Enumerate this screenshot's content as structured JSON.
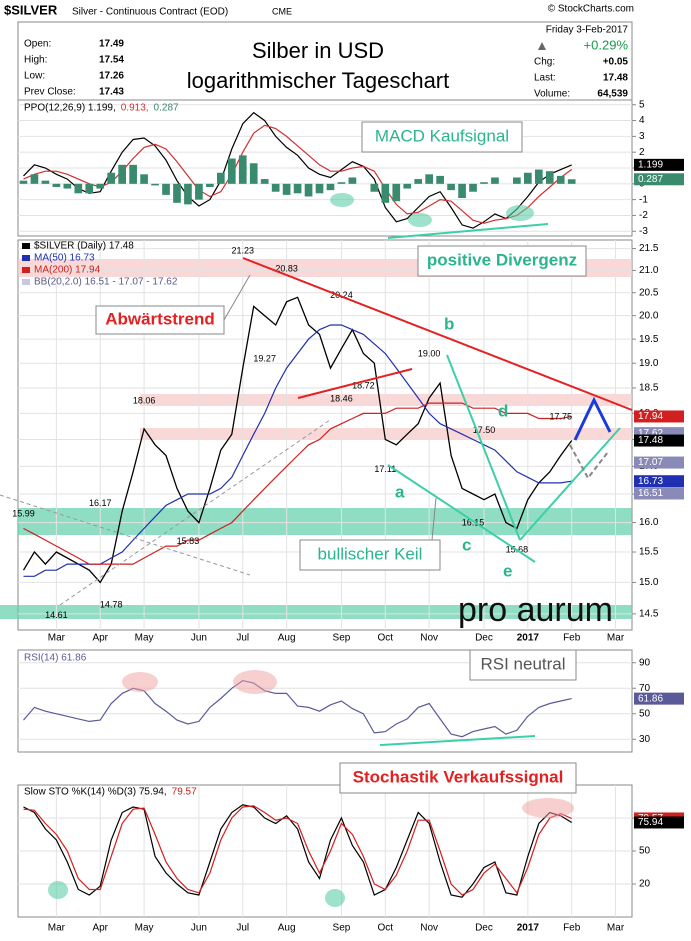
{
  "header": {
    "symbol": "$SILVER",
    "name": "Silver - Continuous Contract (EOD)",
    "exchange": "CME",
    "copyright": "© StockCharts.com",
    "quote": [
      {
        "label": "Open:",
        "value": "17.49"
      },
      {
        "label": "High:",
        "value": "17.54"
      },
      {
        "label": "Low:",
        "value": "17.26"
      },
      {
        "label": "Prev Close:",
        "value": "17.43"
      }
    ],
    "date": "Friday  3-Feb-2017",
    "change_pct": "+0.29%",
    "stats": [
      {
        "label": "Chg:",
        "value": "+0.05"
      },
      {
        "label": "Last:",
        "value": "17.48"
      },
      {
        "label": "Volume:",
        "value": "64,539"
      }
    ]
  },
  "annotations": {
    "title": "Silber in USD",
    "subtitle": "logarithmischer Tageschart",
    "macd": "MACD Kaufsignal",
    "divergence": "positive Divergenz",
    "downtrend": "Abwärtstrend",
    "wedge": "bullischer Keil",
    "rsi": "RSI neutral",
    "stochastic": "Stochastik Verkaufssignal",
    "waves": [
      "a",
      "b",
      "c",
      "d",
      "e"
    ],
    "logo": "pro aurum"
  },
  "chart_data": [
    {
      "type": "line",
      "ylim": [
        -3.3,
        5.3
      ],
      "yticks": [
        5,
        4,
        3,
        2,
        1,
        0,
        -1,
        -2,
        -3
      ],
      "grid": true,
      "series": [
        {
          "name": "PPO(12,26,9) 1.199,",
          "color": "#000000",
          "values": [
            0.5,
            1.2,
            1.0,
            0.6,
            0.3,
            -0.3,
            -0.6,
            -0.5,
            0.8,
            2.0,
            2.8,
            2.9,
            2.4,
            1.5,
            0.2,
            -0.8,
            -1.4,
            -1.0,
            0.2,
            2.2,
            3.8,
            4.5,
            4.0,
            3.0,
            2.3,
            1.8,
            1.0,
            0.6,
            0.4,
            0.9,
            1.4,
            1.1,
            0.3,
            -1.5,
            -2.4,
            -2.2,
            -1.5,
            -0.8,
            -0.5,
            -1.5,
            -2.6,
            -2.8,
            -2.4,
            -1.9,
            -2.2,
            -1.6,
            -0.8,
            0.1,
            0.6,
            0.9,
            1.199,
            null,
            null,
            null,
            null,
            null
          ]
        },
        {
          "name": "0.913,",
          "color": "#d03030",
          "values": [
            0.3,
            0.6,
            0.8,
            0.8,
            0.6,
            0.3,
            0.0,
            -0.2,
            0.1,
            0.8,
            1.6,
            2.3,
            2.5,
            2.2,
            1.4,
            0.5,
            -0.4,
            -0.8,
            -0.5,
            0.6,
            2.0,
            3.2,
            3.7,
            3.5,
            3.0,
            2.4,
            1.8,
            1.2,
            0.8,
            0.8,
            1.0,
            1.1,
            0.8,
            -0.3,
            -1.3,
            -1.9,
            -1.8,
            -1.4,
            -1.0,
            -1.1,
            -1.7,
            -2.3,
            -2.5,
            -2.3,
            -2.2,
            -2.0,
            -1.5,
            -0.8,
            -0.2,
            0.4,
            0.913,
            null,
            null,
            null,
            null,
            null
          ]
        },
        {
          "name": "0.287",
          "color": "#3a8a6e",
          "type": "bar",
          "values": [
            0.2,
            0.6,
            0.2,
            -0.2,
            -0.3,
            -0.6,
            -0.6,
            -0.3,
            0.7,
            1.2,
            1.2,
            0.6,
            -0.1,
            -0.7,
            -1.2,
            -1.3,
            -1.0,
            -0.2,
            0.7,
            1.6,
            1.8,
            1.3,
            0.3,
            -0.5,
            -0.7,
            -0.6,
            -0.8,
            -0.6,
            -0.4,
            0.1,
            0.4,
            0,
            -0.5,
            -1.2,
            -1.1,
            -0.3,
            0.3,
            0.6,
            0.5,
            -0.4,
            -0.9,
            -0.5,
            0.1,
            0.4,
            0,
            0.4,
            0.7,
            0.9,
            0.8,
            0.5,
            0.287,
            null,
            null,
            null,
            null,
            null
          ]
        }
      ],
      "value_tags": [
        {
          "value": 1.199,
          "color": "#000000"
        },
        {
          "value": 0.287,
          "color": "#3a8a6e"
        }
      ]
    },
    {
      "type": "line",
      "log_scale": true,
      "ylim": [
        14.25,
        21.7
      ],
      "grid": true,
      "categories": [
        null,
        null,
        null,
        "Mar",
        null,
        null,
        null,
        "Apr",
        null,
        null,
        null,
        "May",
        null,
        null,
        null,
        null,
        "Jun",
        null,
        null,
        null,
        "Jul",
        null,
        null,
        null,
        "Aug",
        null,
        null,
        null,
        null,
        "Sep",
        null,
        null,
        null,
        "Oct",
        null,
        null,
        null,
        "Nov",
        null,
        null,
        null,
        null,
        "Dec",
        null,
        null,
        null,
        "2017",
        null,
        null,
        null,
        "Feb",
        null,
        null,
        null,
        "Mar",
        null
      ],
      "yticks": [
        21.5,
        {
          "value": 21,
          "label": "21.0"
        },
        20.5,
        {
          "value": 20,
          "label": "20.0"
        },
        19.5,
        {
          "value": 19,
          "label": "19.0"
        },
        18.5,
        {
          "value": 18,
          "label": "18.0"
        },
        17.5,
        {
          "value": 17,
          "label": "17.0"
        },
        16.5,
        {
          "value": 16,
          "label": "16.0"
        },
        15.5,
        {
          "value": 15,
          "label": "15.0"
        },
        14.5
      ],
      "series": [
        {
          "name": "$SILVER (Daily) 17.48",
          "color": "#000000",
          "values": [
            15.2,
            15.5,
            15.3,
            15.5,
            15.4,
            15.3,
            15.2,
            15.0,
            15.3,
            16.2,
            16.9,
            17.7,
            17.4,
            17.2,
            16.6,
            16.2,
            16.0,
            16.6,
            17.3,
            17.6,
            18.9,
            20.2,
            20.0,
            19.8,
            20.3,
            20.4,
            19.8,
            19.6,
            18.9,
            19.3,
            19.7,
            19.2,
            19.0,
            17.5,
            17.4,
            17.6,
            17.8,
            18.3,
            18.6,
            17.2,
            16.6,
            16.5,
            16.4,
            16.5,
            16.0,
            15.9,
            16.4,
            16.7,
            16.9,
            17.2,
            17.48,
            null,
            null,
            null,
            null,
            null
          ]
        },
        {
          "name": "MA(50) 16.73",
          "color": "#2030b0",
          "values": [
            15.1,
            15.1,
            15.2,
            15.2,
            15.3,
            15.3,
            15.3,
            15.3,
            15.4,
            15.5,
            15.7,
            15.9,
            16.1,
            16.3,
            16.4,
            16.5,
            16.5,
            16.5,
            16.6,
            16.8,
            17.2,
            17.6,
            18.0,
            18.5,
            18.9,
            19.2,
            19.5,
            19.7,
            19.8,
            19.8,
            19.7,
            19.6,
            19.4,
            19.2,
            18.9,
            18.6,
            18.3,
            18.0,
            17.8,
            17.7,
            17.6,
            17.5,
            17.4,
            17.3,
            17.1,
            16.9,
            16.8,
            16.7,
            16.7,
            16.7,
            16.73,
            null,
            null,
            null,
            null,
            null
          ]
        },
        {
          "name": "MA(200) 17.94",
          "color": "#d02020",
          "values": [
            15.9,
            15.8,
            15.7,
            15.6,
            15.5,
            15.4,
            15.3,
            15.3,
            15.3,
            15.3,
            15.3,
            15.4,
            15.5,
            15.6,
            15.6,
            15.7,
            15.7,
            15.8,
            15.9,
            16.0,
            16.2,
            16.4,
            16.6,
            16.8,
            17.0,
            17.2,
            17.4,
            17.5,
            17.7,
            17.8,
            17.9,
            18.0,
            18.0,
            18.0,
            18.1,
            18.1,
            18.1,
            18.2,
            18.2,
            18.2,
            18.2,
            18.1,
            18.1,
            18.1,
            18.0,
            18.0,
            18.0,
            17.9,
            17.9,
            17.9,
            17.94,
            null,
            null,
            null,
            null,
            null
          ]
        }
      ],
      "bands_label": "BB(20,2.0) 16.51 - 17.07 - 17.62",
      "price_labels": [
        21.23,
        20.83,
        20.24,
        19.27,
        18.72,
        18.46,
        18.06,
        16.17,
        15.99,
        15.83,
        14.78,
        14.61,
        {
          "value": 19,
          "label": "19.00"
        },
        17.11,
        {
          "value": 17.5,
          "label": "17.50"
        },
        16.15,
        15.68,
        17.75
      ],
      "value_tags": [
        {
          "value": 17.94,
          "color": "#d02020"
        },
        {
          "value": 17.62,
          "color": "#8a8ab8"
        },
        {
          "value": 17.48,
          "color": "#000000"
        },
        {
          "value": 17.07,
          "color": "#8a8ab8"
        },
        {
          "value": 16.73,
          "color": "#2030b0"
        },
        {
          "value": 16.51,
          "color": "#8a8ab8"
        }
      ]
    },
    {
      "type": "line",
      "ylim": [
        20,
        100
      ],
      "yticks": [
        90,
        70,
        50,
        30
      ],
      "grid": true,
      "series": [
        {
          "name": "RSI(14) 61.86",
          "color": "#5a5a9a",
          "values": [
            45,
            55,
            52,
            50,
            48,
            46,
            44,
            45,
            58,
            66,
            70,
            68,
            58,
            52,
            45,
            42,
            44,
            55,
            62,
            70,
            76,
            74,
            68,
            66,
            66,
            56,
            55,
            52,
            57,
            60,
            54,
            50,
            35,
            36,
            42,
            46,
            55,
            58,
            46,
            34,
            32,
            36,
            38,
            40,
            34,
            37,
            48,
            55,
            58,
            60,
            61.86,
            null,
            null,
            null,
            null,
            null
          ]
        }
      ],
      "value_tags": [
        {
          "value": 61.86,
          "color": "#5a5a9a"
        }
      ]
    },
    {
      "type": "line",
      "ylim": [
        -10,
        110
      ],
      "yticks": [
        80,
        50,
        20
      ],
      "grid": true,
      "categories": [
        null,
        null,
        null,
        "Mar",
        null,
        null,
        null,
        "Apr",
        null,
        null,
        null,
        "May",
        null,
        null,
        null,
        null,
        "Jun",
        null,
        null,
        null,
        "Jul",
        null,
        null,
        null,
        "Aug",
        null,
        null,
        null,
        null,
        "Sep",
        null,
        null,
        null,
        "Oct",
        null,
        null,
        null,
        "Nov",
        null,
        null,
        null,
        null,
        "Dec",
        null,
        null,
        null,
        "2017",
        null,
        null,
        null,
        "Feb",
        null,
        null,
        null,
        "Mar",
        null
      ],
      "series": [
        {
          "name": "Slow STO %K(14) %D(3) 75.94,",
          "color": "#000000",
          "values": [
            90,
            85,
            70,
            60,
            40,
            15,
            10,
            18,
            60,
            85,
            90,
            88,
            45,
            30,
            20,
            12,
            10,
            40,
            70,
            85,
            92,
            90,
            80,
            75,
            82,
            70,
            40,
            25,
            60,
            80,
            55,
            40,
            10,
            15,
            35,
            60,
            85,
            75,
            40,
            10,
            8,
            20,
            35,
            40,
            12,
            10,
            45,
            75,
            85,
            82,
            75.94,
            null,
            null,
            null,
            null,
            null
          ]
        },
        {
          "name": "79.57",
          "color": "#d02020",
          "values": [
            88,
            87,
            75,
            65,
            50,
            25,
            15,
            15,
            45,
            75,
            88,
            89,
            65,
            40,
            25,
            15,
            12,
            30,
            60,
            80,
            90,
            91,
            85,
            78,
            80,
            75,
            50,
            30,
            50,
            75,
            65,
            45,
            20,
            15,
            28,
            50,
            78,
            78,
            50,
            20,
            10,
            15,
            30,
            38,
            25,
            12,
            35,
            65,
            80,
            84,
            79.57,
            null,
            null,
            null,
            null,
            null
          ]
        }
      ],
      "value_tags": [
        {
          "value": 79.57,
          "color": "#d02020"
        },
        {
          "value": 75.94,
          "color": "#000000"
        }
      ]
    }
  ]
}
